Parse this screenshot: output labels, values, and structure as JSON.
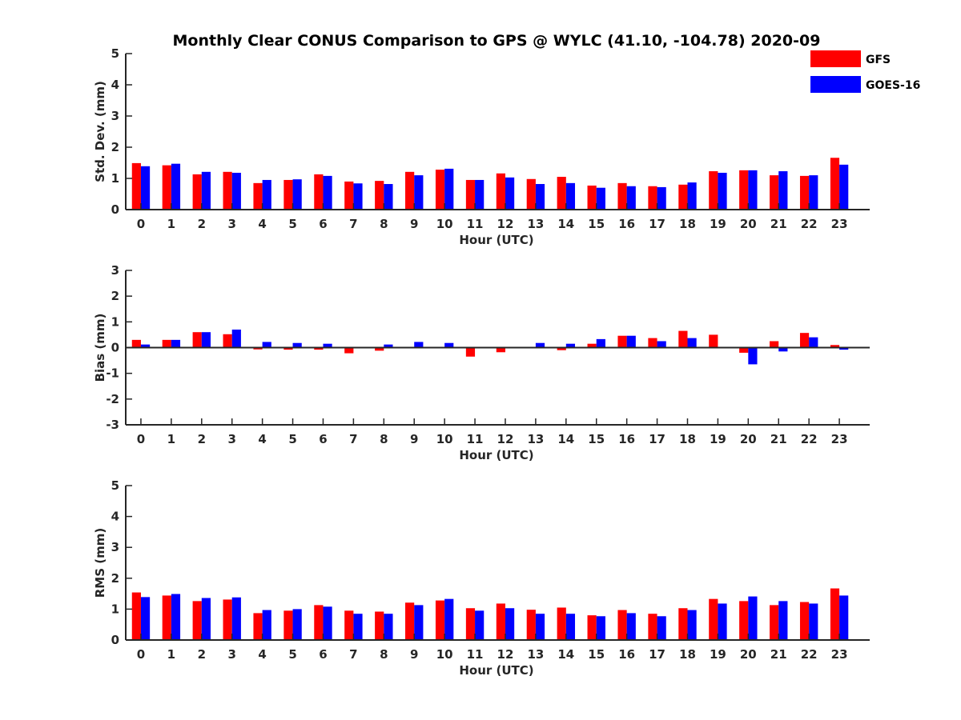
{
  "title": "Monthly Clear CONUS Comparison to GPS @ WYLC (41.10, -104.78) 2020-09",
  "colors": {
    "GFS": "#ff0000",
    "GOES-16": "#0000ff"
  },
  "legend": [
    {
      "name": "GFS",
      "color": "#ff0000"
    },
    {
      "name": "GOES-16",
      "color": "#0000ff"
    }
  ],
  "chart_data": [
    {
      "type": "bar",
      "ylabel": "Std. Dev. (mm)",
      "xlabel": "Hour (UTC)",
      "ylim": [
        0,
        5
      ],
      "yticks": [
        0,
        1,
        2,
        3,
        4,
        5
      ],
      "categories": [
        "0",
        "1",
        "2",
        "3",
        "4",
        "5",
        "6",
        "7",
        "8",
        "9",
        "10",
        "11",
        "12",
        "13",
        "14",
        "15",
        "16",
        "17",
        "18",
        "19",
        "20",
        "21",
        "22",
        "23"
      ],
      "series": [
        {
          "name": "GFS",
          "values": [
            1.49,
            1.42,
            1.13,
            1.21,
            0.85,
            0.95,
            1.13,
            0.9,
            0.92,
            1.21,
            1.28,
            0.95,
            1.16,
            0.98,
            1.05,
            0.77,
            0.85,
            0.75,
            0.8,
            1.23,
            1.26,
            1.1,
            1.08,
            1.66
          ]
        },
        {
          "name": "GOES-16",
          "values": [
            1.39,
            1.47,
            1.21,
            1.18,
            0.95,
            0.97,
            1.08,
            0.84,
            0.82,
            1.1,
            1.31,
            0.95,
            1.03,
            0.82,
            0.85,
            0.7,
            0.75,
            0.72,
            0.87,
            1.18,
            1.26,
            1.23,
            1.1,
            1.44
          ]
        }
      ]
    },
    {
      "type": "bar",
      "ylabel": "Bias (mm)",
      "xlabel": "Hour (UTC)",
      "ylim": [
        -3,
        3
      ],
      "yticks": [
        -3,
        -2,
        -1,
        0,
        1,
        2,
        3
      ],
      "categories": [
        "0",
        "1",
        "2",
        "3",
        "4",
        "5",
        "6",
        "7",
        "8",
        "9",
        "10",
        "11",
        "12",
        "13",
        "14",
        "15",
        "16",
        "17",
        "18",
        "19",
        "20",
        "21",
        "22",
        "23"
      ],
      "series": [
        {
          "name": "GFS",
          "values": [
            0.3,
            0.3,
            0.6,
            0.52,
            -0.07,
            -0.08,
            -0.08,
            -0.22,
            -0.12,
            0.0,
            0.03,
            -0.35,
            -0.18,
            0.0,
            -0.1,
            0.15,
            0.46,
            0.37,
            0.65,
            0.5,
            -0.2,
            0.25,
            0.57,
            0.1
          ]
        },
        {
          "name": "GOES-16",
          "values": [
            0.12,
            0.3,
            0.6,
            0.7,
            0.22,
            0.18,
            0.15,
            -0.03,
            0.12,
            0.22,
            0.18,
            0.03,
            0.03,
            0.18,
            0.15,
            0.33,
            0.46,
            0.25,
            0.37,
            0.0,
            -0.65,
            -0.15,
            0.4,
            -0.08
          ]
        }
      ]
    },
    {
      "type": "bar",
      "ylabel": "RMS (mm)",
      "xlabel": "Hour (UTC)",
      "ylim": [
        0,
        5
      ],
      "yticks": [
        0,
        1,
        2,
        3,
        4,
        5
      ],
      "categories": [
        "0",
        "1",
        "2",
        "3",
        "4",
        "5",
        "6",
        "7",
        "8",
        "9",
        "10",
        "11",
        "12",
        "13",
        "14",
        "15",
        "16",
        "17",
        "18",
        "19",
        "20",
        "21",
        "22",
        "23"
      ],
      "series": [
        {
          "name": "GFS",
          "values": [
            1.54,
            1.44,
            1.26,
            1.31,
            0.87,
            0.95,
            1.13,
            0.95,
            0.92,
            1.21,
            1.28,
            1.03,
            1.18,
            0.98,
            1.05,
            0.8,
            0.97,
            0.85,
            1.03,
            1.33,
            1.26,
            1.13,
            1.23,
            1.67
          ]
        },
        {
          "name": "GOES-16",
          "values": [
            1.39,
            1.49,
            1.36,
            1.38,
            0.97,
            1.0,
            1.08,
            0.85,
            0.85,
            1.13,
            1.33,
            0.95,
            1.03,
            0.85,
            0.85,
            0.77,
            0.87,
            0.77,
            0.97,
            1.18,
            1.41,
            1.26,
            1.18,
            1.44
          ]
        }
      ]
    }
  ]
}
